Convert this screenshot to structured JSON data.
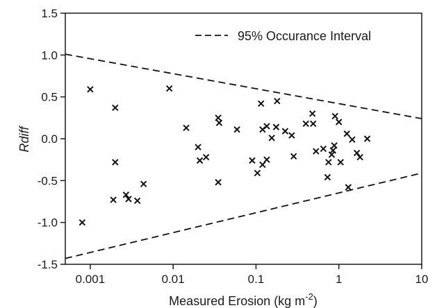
{
  "chart_data": {
    "type": "scatter",
    "title": "",
    "xlabel": "Measured Erosion (kg m",
    "xlabel_superscript": "-2",
    "xlabel_suffix": ")",
    "ylabel": "Rdiff",
    "x_scale": "log",
    "xlim": [
      0.0005,
      10
    ],
    "ylim": [
      -1.5,
      1.5
    ],
    "x_ticks": [
      {
        "value": 0.001,
        "label": "0.001"
      },
      {
        "value": 0.01,
        "label": "0.01"
      },
      {
        "value": 0.1,
        "label": "0.1"
      },
      {
        "value": 1,
        "label": "1"
      },
      {
        "value": 10,
        "label": "10"
      }
    ],
    "y_ticks": [
      {
        "value": 1.5,
        "label": "1.5"
      },
      {
        "value": 1.0,
        "label": "1.0"
      },
      {
        "value": 0.5,
        "label": "0.5"
      },
      {
        "value": 0.0,
        "label": "0.0"
      },
      {
        "value": -0.5,
        "label": "-0.5"
      },
      {
        "value": -1.0,
        "label": "-1.0"
      },
      {
        "value": -1.5,
        "label": "-1.5"
      }
    ],
    "grid": false,
    "legend": {
      "position": "top-right",
      "entries": [
        {
          "label": "95% Occurance Interval",
          "style": "dashed"
        }
      ]
    },
    "colors": {
      "points": "#111111",
      "lines": "#111111",
      "axes": "#1a1a1a"
    },
    "series": [
      {
        "marker": "x",
        "points": [
          {
            "x": 0.0008,
            "y": -1.0
          },
          {
            "x": 0.001,
            "y": 0.59
          },
          {
            "x": 0.0019,
            "y": -0.73
          },
          {
            "x": 0.002,
            "y": 0.37
          },
          {
            "x": 0.002,
            "y": -0.28
          },
          {
            "x": 0.0027,
            "y": -0.67
          },
          {
            "x": 0.0029,
            "y": -0.72
          },
          {
            "x": 0.0037,
            "y": -0.74
          },
          {
            "x": 0.0044,
            "y": -0.54
          },
          {
            "x": 0.009,
            "y": 0.6
          },
          {
            "x": 0.0144,
            "y": 0.13
          },
          {
            "x": 0.02,
            "y": -0.1
          },
          {
            "x": 0.021,
            "y": -0.26
          },
          {
            "x": 0.025,
            "y": -0.22
          },
          {
            "x": 0.035,
            "y": 0.25
          },
          {
            "x": 0.036,
            "y": 0.19
          },
          {
            "x": 0.035,
            "y": -0.52
          },
          {
            "x": 0.059,
            "y": 0.11
          },
          {
            "x": 0.09,
            "y": -0.26
          },
          {
            "x": 0.104,
            "y": -0.41
          },
          {
            "x": 0.115,
            "y": 0.42
          },
          {
            "x": 0.12,
            "y": 0.11
          },
          {
            "x": 0.12,
            "y": -0.31
          },
          {
            "x": 0.135,
            "y": 0.15
          },
          {
            "x": 0.135,
            "y": -0.25
          },
          {
            "x": 0.155,
            "y": 0.01
          },
          {
            "x": 0.175,
            "y": 0.14
          },
          {
            "x": 0.18,
            "y": 0.45
          },
          {
            "x": 0.225,
            "y": 0.09
          },
          {
            "x": 0.27,
            "y": 0.04
          },
          {
            "x": 0.285,
            "y": -0.21
          },
          {
            "x": 0.4,
            "y": 0.18
          },
          {
            "x": 0.48,
            "y": 0.3
          },
          {
            "x": 0.49,
            "y": 0.18
          },
          {
            "x": 0.53,
            "y": -0.15
          },
          {
            "x": 0.65,
            "y": -0.12
          },
          {
            "x": 0.73,
            "y": -0.46
          },
          {
            "x": 0.75,
            "y": -0.28
          },
          {
            "x": 0.82,
            "y": -0.19
          },
          {
            "x": 0.85,
            "y": -0.14
          },
          {
            "x": 0.88,
            "y": -0.08
          },
          {
            "x": 0.9,
            "y": 0.27
          },
          {
            "x": 1.0,
            "y": 0.2
          },
          {
            "x": 1.05,
            "y": -0.28
          },
          {
            "x": 1.25,
            "y": 0.06
          },
          {
            "x": 1.3,
            "y": -0.58
          },
          {
            "x": 1.45,
            "y": -0.01
          },
          {
            "x": 1.65,
            "y": -0.17
          },
          {
            "x": 1.8,
            "y": -0.22
          },
          {
            "x": 2.2,
            "y": 0.0
          }
        ]
      }
    ],
    "interval_lines": [
      {
        "name": "upper",
        "points": [
          {
            "x": 0.0005,
            "y": 1.01
          },
          {
            "x": 10,
            "y": 0.24
          }
        ]
      },
      {
        "name": "lower",
        "points": [
          {
            "x": 0.0005,
            "y": -1.43
          },
          {
            "x": 10,
            "y": -0.41
          }
        ]
      }
    ]
  }
}
